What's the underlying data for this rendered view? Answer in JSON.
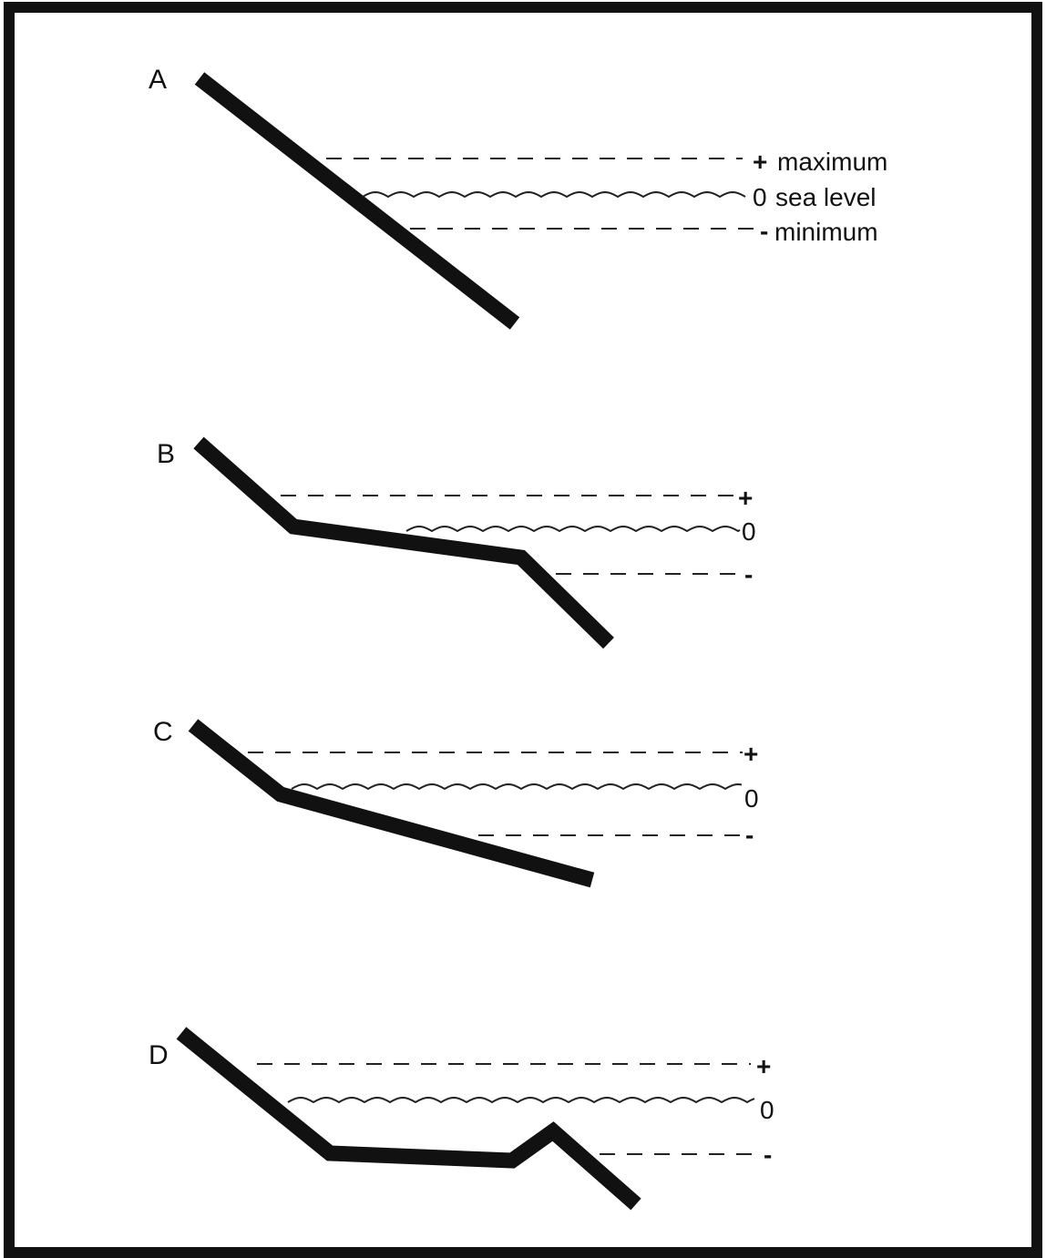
{
  "panels": [
    {
      "letter": "A",
      "max_symbol": "+",
      "max_label": "maximum",
      "sea_symbol": "0",
      "sea_label": "sea level",
      "min_symbol": "-",
      "min_label": "minimum"
    },
    {
      "letter": "B",
      "max_symbol": "+",
      "sea_symbol": "0",
      "min_symbol": "-"
    },
    {
      "letter": "C",
      "max_symbol": "+",
      "sea_symbol": "0",
      "min_symbol": "-"
    },
    {
      "letter": "D",
      "max_symbol": "+",
      "sea_symbol": "0",
      "min_symbol": "-"
    }
  ]
}
